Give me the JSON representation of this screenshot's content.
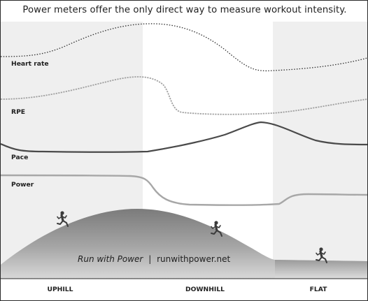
{
  "title": "Power meters offer the only direct way to measure workout intensity.",
  "curves": [
    {
      "label": "Heart rate"
    },
    {
      "label": "RPE"
    },
    {
      "label": "Pace"
    },
    {
      "label": "Power"
    }
  ],
  "caption": {
    "brand": "Run with Power",
    "separator": "|",
    "url": "runwithpower.net"
  },
  "sections": [
    {
      "label": "UPHILL"
    },
    {
      "label": "DOWNHILL"
    },
    {
      "label": "FLAT"
    }
  ],
  "runner_icon": "running-figure-icon"
}
